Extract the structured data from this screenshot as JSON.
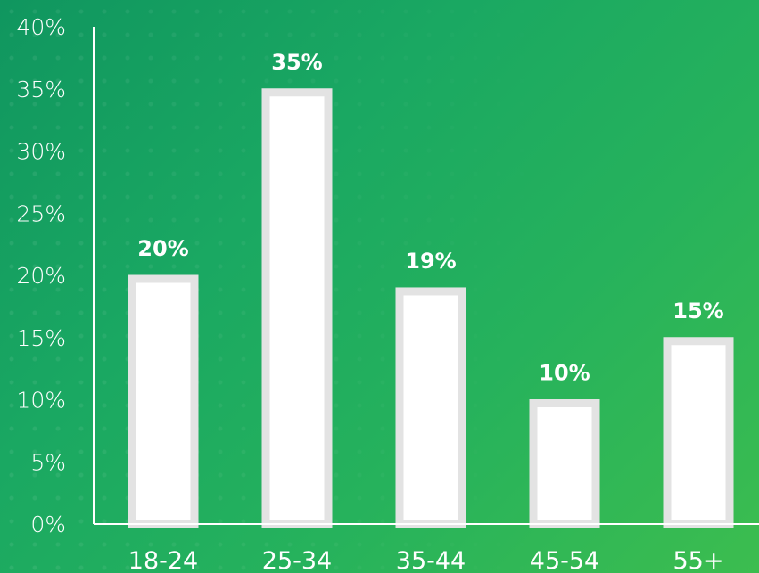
{
  "chart_data": {
    "type": "bar",
    "title": "",
    "xlabel": "",
    "ylabel": "",
    "categories": [
      "18-24",
      "25-34",
      "35-44",
      "45-54",
      "55+"
    ],
    "values": [
      20,
      35,
      19,
      10,
      15
    ],
    "data_labels": [
      "20%",
      "35%",
      "19%",
      "10%",
      "15%"
    ],
    "y_ticks": [
      0,
      5,
      10,
      15,
      20,
      25,
      30,
      35,
      40
    ],
    "y_tick_labels": [
      "0%",
      "5%",
      "10%",
      "15%",
      "20%",
      "25%",
      "30%",
      "35%",
      "40%"
    ],
    "ylim": [
      0,
      40
    ],
    "grid": false,
    "legend": "none",
    "bar_fill": "#ffffff",
    "bar_border": "#e3e3e3",
    "axis_color": "#ffffff"
  }
}
